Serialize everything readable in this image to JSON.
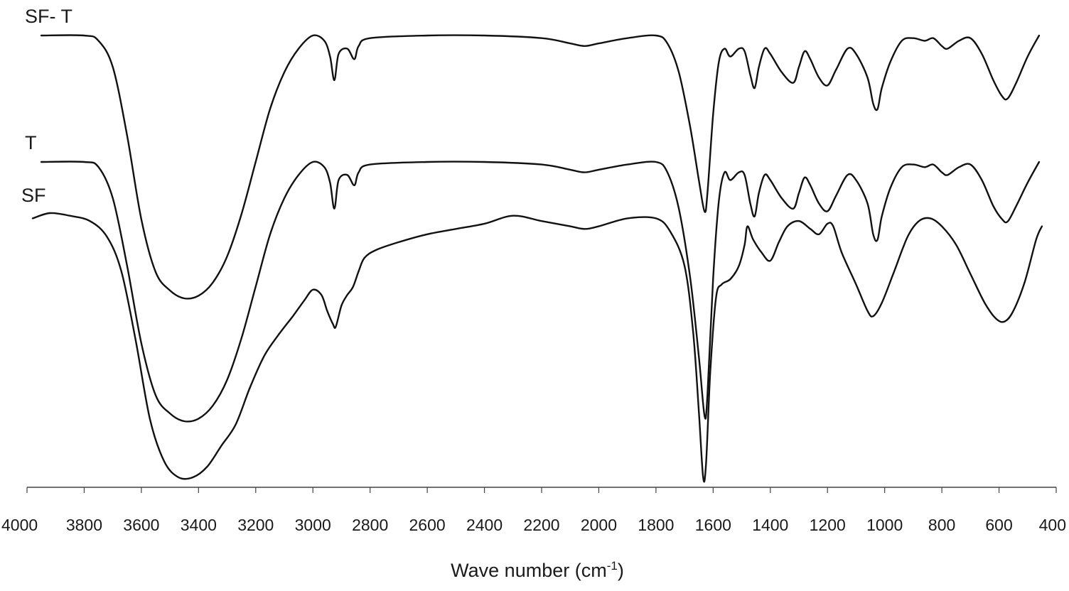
{
  "chart_data": {
    "type": "line",
    "title": "",
    "xlabel": "Wave number (cm",
    "xlabel_superscript": "-1",
    "xlabel_suffix": ")",
    "ylabel": "",
    "xlim": [
      4000,
      400
    ],
    "x_reversed": true,
    "ticks": [
      "4000",
      "3800",
      "3600",
      "3400",
      "3200",
      "3000",
      "2800",
      "2600",
      "2400",
      "2200",
      "2000",
      "1800",
      "1600",
      "1400",
      "1200",
      "1000",
      "800",
      "600",
      "400"
    ],
    "grid": false,
    "series": [
      {
        "name": "SF- T",
        "points": [
          [
            3950,
            1.0
          ],
          [
            3800,
            1.0
          ],
          [
            3750,
            0.98
          ],
          [
            3700,
            0.88
          ],
          [
            3650,
            0.62
          ],
          [
            3600,
            0.3
          ],
          [
            3550,
            0.1
          ],
          [
            3500,
            0.03
          ],
          [
            3450,
            0.0
          ],
          [
            3400,
            0.01
          ],
          [
            3350,
            0.06
          ],
          [
            3300,
            0.16
          ],
          [
            3250,
            0.32
          ],
          [
            3200,
            0.52
          ],
          [
            3150,
            0.72
          ],
          [
            3100,
            0.86
          ],
          [
            3050,
            0.95
          ],
          [
            3000,
            1.0
          ],
          [
            2960,
            0.98
          ],
          [
            2940,
            0.92
          ],
          [
            2925,
            0.83
          ],
          [
            2910,
            0.93
          ],
          [
            2880,
            0.95
          ],
          [
            2855,
            0.91
          ],
          [
            2840,
            0.96
          ],
          [
            2800,
            0.99
          ],
          [
            2600,
            1.0
          ],
          [
            2400,
            1.0
          ],
          [
            2200,
            0.99
          ],
          [
            2100,
            0.97
          ],
          [
            2050,
            0.96
          ],
          [
            2000,
            0.97
          ],
          [
            1900,
            0.99
          ],
          [
            1800,
            1.0
          ],
          [
            1760,
            0.97
          ],
          [
            1720,
            0.86
          ],
          [
            1680,
            0.65
          ],
          [
            1650,
            0.45
          ],
          [
            1630,
            0.33
          ],
          [
            1620,
            0.4
          ],
          [
            1600,
            0.7
          ],
          [
            1580,
            0.9
          ],
          [
            1560,
            0.95
          ],
          [
            1540,
            0.92
          ],
          [
            1510,
            0.95
          ],
          [
            1490,
            0.94
          ],
          [
            1470,
            0.85
          ],
          [
            1455,
            0.8
          ],
          [
            1440,
            0.88
          ],
          [
            1420,
            0.95
          ],
          [
            1400,
            0.93
          ],
          [
            1360,
            0.86
          ],
          [
            1320,
            0.82
          ],
          [
            1300,
            0.88
          ],
          [
            1280,
            0.94
          ],
          [
            1260,
            0.91
          ],
          [
            1230,
            0.84
          ],
          [
            1200,
            0.81
          ],
          [
            1170,
            0.87
          ],
          [
            1130,
            0.95
          ],
          [
            1100,
            0.93
          ],
          [
            1060,
            0.84
          ],
          [
            1040,
            0.74
          ],
          [
            1025,
            0.72
          ],
          [
            1010,
            0.8
          ],
          [
            980,
            0.9
          ],
          [
            940,
            0.98
          ],
          [
            900,
            0.99
          ],
          [
            860,
            0.98
          ],
          [
            830,
            0.99
          ],
          [
            800,
            0.96
          ],
          [
            780,
            0.95
          ],
          [
            740,
            0.98
          ],
          [
            700,
            0.99
          ],
          [
            660,
            0.93
          ],
          [
            620,
            0.83
          ],
          [
            590,
            0.77
          ],
          [
            570,
            0.76
          ],
          [
            540,
            0.82
          ],
          [
            500,
            0.92
          ],
          [
            460,
            1.0
          ]
        ]
      },
      {
        "name": "T",
        "points": [
          [
            3950,
            1.0
          ],
          [
            3800,
            1.0
          ],
          [
            3750,
            0.98
          ],
          [
            3700,
            0.86
          ],
          [
            3650,
            0.6
          ],
          [
            3600,
            0.3
          ],
          [
            3550,
            0.1
          ],
          [
            3500,
            0.03
          ],
          [
            3450,
            0.0
          ],
          [
            3400,
            0.01
          ],
          [
            3350,
            0.06
          ],
          [
            3300,
            0.16
          ],
          [
            3250,
            0.32
          ],
          [
            3200,
            0.52
          ],
          [
            3150,
            0.72
          ],
          [
            3100,
            0.86
          ],
          [
            3050,
            0.95
          ],
          [
            3000,
            1.0
          ],
          [
            2960,
            0.98
          ],
          [
            2940,
            0.92
          ],
          [
            2925,
            0.82
          ],
          [
            2910,
            0.93
          ],
          [
            2880,
            0.95
          ],
          [
            2855,
            0.91
          ],
          [
            2840,
            0.96
          ],
          [
            2800,
            0.99
          ],
          [
            2600,
            1.0
          ],
          [
            2400,
            1.0
          ],
          [
            2200,
            0.99
          ],
          [
            2100,
            0.97
          ],
          [
            2050,
            0.96
          ],
          [
            2000,
            0.97
          ],
          [
            1900,
            0.99
          ],
          [
            1800,
            1.0
          ],
          [
            1760,
            0.96
          ],
          [
            1720,
            0.82
          ],
          [
            1680,
            0.55
          ],
          [
            1650,
            0.25
          ],
          [
            1630,
            0.02
          ],
          [
            1620,
            0.1
          ],
          [
            1600,
            0.55
          ],
          [
            1580,
            0.85
          ],
          [
            1560,
            0.96
          ],
          [
            1540,
            0.93
          ],
          [
            1510,
            0.96
          ],
          [
            1490,
            0.95
          ],
          [
            1470,
            0.84
          ],
          [
            1455,
            0.79
          ],
          [
            1440,
            0.88
          ],
          [
            1420,
            0.95
          ],
          [
            1400,
            0.93
          ],
          [
            1360,
            0.86
          ],
          [
            1320,
            0.82
          ],
          [
            1300,
            0.88
          ],
          [
            1280,
            0.94
          ],
          [
            1260,
            0.91
          ],
          [
            1230,
            0.84
          ],
          [
            1200,
            0.81
          ],
          [
            1170,
            0.87
          ],
          [
            1130,
            0.95
          ],
          [
            1100,
            0.93
          ],
          [
            1060,
            0.84
          ],
          [
            1040,
            0.72
          ],
          [
            1025,
            0.7
          ],
          [
            1010,
            0.79
          ],
          [
            980,
            0.9
          ],
          [
            940,
            0.98
          ],
          [
            900,
            0.99
          ],
          [
            860,
            0.98
          ],
          [
            830,
            0.99
          ],
          [
            800,
            0.96
          ],
          [
            780,
            0.95
          ],
          [
            740,
            0.98
          ],
          [
            700,
            0.99
          ],
          [
            660,
            0.93
          ],
          [
            620,
            0.83
          ],
          [
            590,
            0.78
          ],
          [
            570,
            0.77
          ],
          [
            540,
            0.83
          ],
          [
            500,
            0.92
          ],
          [
            460,
            1.0
          ]
        ]
      },
      {
        "name": "SF",
        "points": [
          [
            3980,
            0.98
          ],
          [
            3920,
            1.0
          ],
          [
            3850,
            0.99
          ],
          [
            3780,
            0.97
          ],
          [
            3720,
            0.91
          ],
          [
            3670,
            0.78
          ],
          [
            3620,
            0.52
          ],
          [
            3570,
            0.22
          ],
          [
            3520,
            0.06
          ],
          [
            3470,
            0.0
          ],
          [
            3420,
            0.0
          ],
          [
            3370,
            0.04
          ],
          [
            3320,
            0.12
          ],
          [
            3270,
            0.2
          ],
          [
            3220,
            0.34
          ],
          [
            3170,
            0.46
          ],
          [
            3120,
            0.54
          ],
          [
            3070,
            0.61
          ],
          [
            3030,
            0.67
          ],
          [
            3000,
            0.71
          ],
          [
            2970,
            0.69
          ],
          [
            2950,
            0.63
          ],
          [
            2930,
            0.58
          ],
          [
            2920,
            0.57
          ],
          [
            2900,
            0.65
          ],
          [
            2880,
            0.69
          ],
          [
            2860,
            0.72
          ],
          [
            2840,
            0.78
          ],
          [
            2820,
            0.83
          ],
          [
            2780,
            0.86
          ],
          [
            2700,
            0.89
          ],
          [
            2600,
            0.92
          ],
          [
            2500,
            0.94
          ],
          [
            2400,
            0.96
          ],
          [
            2300,
            0.99
          ],
          [
            2200,
            0.97
          ],
          [
            2100,
            0.95
          ],
          [
            2050,
            0.94
          ],
          [
            2000,
            0.95
          ],
          [
            1900,
            0.98
          ],
          [
            1800,
            0.98
          ],
          [
            1750,
            0.93
          ],
          [
            1700,
            0.8
          ],
          [
            1670,
            0.55
          ],
          [
            1650,
            0.25
          ],
          [
            1635,
            0.0
          ],
          [
            1625,
            0.05
          ],
          [
            1610,
            0.4
          ],
          [
            1590,
            0.68
          ],
          [
            1570,
            0.73
          ],
          [
            1540,
            0.75
          ],
          [
            1510,
            0.8
          ],
          [
            1490,
            0.88
          ],
          [
            1480,
            0.95
          ],
          [
            1460,
            0.9
          ],
          [
            1430,
            0.85
          ],
          [
            1400,
            0.82
          ],
          [
            1370,
            0.89
          ],
          [
            1340,
            0.95
          ],
          [
            1300,
            0.97
          ],
          [
            1260,
            0.94
          ],
          [
            1230,
            0.92
          ],
          [
            1200,
            0.96
          ],
          [
            1180,
            0.95
          ],
          [
            1150,
            0.85
          ],
          [
            1100,
            0.73
          ],
          [
            1060,
            0.63
          ],
          [
            1040,
            0.61
          ],
          [
            1010,
            0.66
          ],
          [
            970,
            0.77
          ],
          [
            920,
            0.91
          ],
          [
            880,
            0.97
          ],
          [
            840,
            0.98
          ],
          [
            800,
            0.95
          ],
          [
            750,
            0.88
          ],
          [
            700,
            0.77
          ],
          [
            650,
            0.66
          ],
          [
            610,
            0.6
          ],
          [
            580,
            0.59
          ],
          [
            550,
            0.63
          ],
          [
            510,
            0.74
          ],
          [
            470,
            0.9
          ],
          [
            450,
            0.95
          ]
        ]
      }
    ]
  }
}
